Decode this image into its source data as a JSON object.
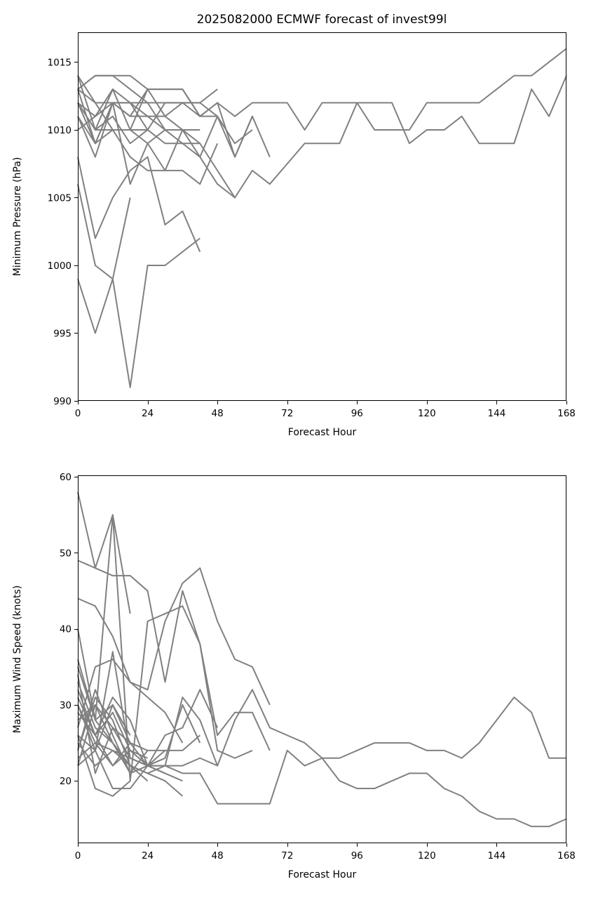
{
  "figure": {
    "title": "2025082000 ECMWF forecast of invest99l"
  },
  "chart_data": [
    {
      "type": "line",
      "title": "2025082000 ECMWF forecast of invest99l",
      "xlabel": "Forecast Hour",
      "ylabel": "Minimum Pressure (hPa)",
      "xlim": [
        0,
        168
      ],
      "ylim": [
        990,
        1017.2
      ],
      "xticks": [
        0,
        24,
        48,
        72,
        96,
        120,
        144,
        168
      ],
      "yticks": [
        990,
        995,
        1000,
        1005,
        1010,
        1015
      ],
      "line_color": "#808080",
      "grid": false,
      "series": [
        {
          "x": [
            0,
            6,
            12,
            18,
            24,
            30,
            36,
            42,
            48,
            54,
            60,
            66,
            72,
            78,
            84,
            90,
            96,
            102,
            108,
            114,
            120,
            126,
            132,
            138,
            144,
            150,
            156,
            162,
            168
          ],
          "y": [
            1013,
            1014,
            1014,
            1013,
            1012,
            1012,
            1012,
            1011,
            1012,
            1011,
            1012,
            1012,
            1012,
            1010,
            1012,
            1012,
            1012,
            1012,
            1012,
            1009,
            1010,
            1010,
            1011,
            1009,
            1009,
            1009,
            1013,
            1011,
            1014
          ]
        },
        {
          "x": [
            0,
            6,
            12,
            18,
            24,
            30,
            36,
            42,
            48,
            54,
            60,
            66,
            72,
            78,
            84,
            90,
            96,
            102,
            108,
            114,
            120,
            126,
            132,
            138,
            144,
            150,
            156,
            162,
            168
          ],
          "y": [
            1012,
            1011,
            1013,
            1012,
            1011,
            1010,
            1010,
            1008,
            1006,
            1005,
            1007,
            1006,
            1007.5,
            1009,
            1009,
            1009,
            1012,
            1010,
            1010,
            1010,
            1012,
            1012,
            1012,
            1012,
            1013,
            1014,
            1014,
            1015,
            1016
          ]
        },
        {
          "x": [
            0,
            6,
            12,
            18,
            24,
            30,
            36,
            42,
            48,
            54,
            60,
            66
          ],
          "y": [
            1013,
            1012,
            1010,
            1010,
            1013,
            1013,
            1013,
            1011,
            1012,
            1008,
            1011,
            1008
          ]
        },
        {
          "x": [
            0,
            6,
            12,
            18,
            24,
            30,
            36,
            42,
            48
          ],
          "y": [
            1014,
            1012,
            1012,
            1011,
            1013,
            1011,
            1012,
            1012,
            1013
          ]
        },
        {
          "x": [
            0,
            6,
            12,
            18,
            24,
            30,
            36,
            42,
            48
          ],
          "y": [
            1013,
            1014,
            1014,
            1014,
            1013,
            1013,
            1013,
            1011,
            1011
          ]
        },
        {
          "x": [
            0,
            6,
            12,
            18,
            24,
            30,
            36,
            42,
            48,
            54,
            60
          ],
          "y": [
            1012,
            1009,
            1010,
            1010,
            1010,
            1012,
            1012,
            1012,
            1011,
            1009,
            1010
          ]
        },
        {
          "x": [
            0,
            6,
            12,
            18,
            24,
            30,
            36,
            42,
            48,
            54,
            60
          ],
          "y": [
            1012,
            1010,
            1011,
            1009,
            1010,
            1009,
            1009,
            1008,
            1011,
            1008,
            1011
          ]
        },
        {
          "x": [
            0,
            6,
            12,
            18,
            24,
            30,
            36,
            42
          ],
          "y": [
            1013,
            1009,
            1012,
            1011,
            1011,
            1011,
            1010,
            1010
          ]
        },
        {
          "x": [
            0,
            6,
            12,
            18,
            24,
            30,
            36,
            42
          ],
          "y": [
            1011,
            1009,
            1012,
            1012,
            1012,
            1010,
            1010,
            1009
          ]
        },
        {
          "x": [
            0,
            6,
            12,
            18,
            24,
            30,
            36,
            42,
            48
          ],
          "y": [
            1014,
            1010,
            1013,
            1010,
            1009,
            1007,
            1007,
            1006,
            1009
          ]
        },
        {
          "x": [
            0,
            6,
            12,
            18,
            24,
            30,
            36,
            42,
            48,
            54
          ],
          "y": [
            1011,
            1008,
            1012,
            1006,
            1009,
            1010,
            1009,
            1009,
            1007,
            1005
          ]
        },
        {
          "x": [
            0,
            6,
            12,
            18,
            24,
            30,
            36
          ],
          "y": [
            1012,
            1010,
            1010,
            1008,
            1007,
            1007,
            1010
          ]
        },
        {
          "x": [
            0,
            6,
            12,
            18,
            24
          ],
          "y": [
            1010,
            1011,
            1012,
            1012,
            1010
          ]
        },
        {
          "x": [
            0,
            6,
            12,
            18,
            24,
            30,
            36,
            42
          ],
          "y": [
            1008,
            1002,
            1005,
            1007,
            1008,
            1003,
            1004,
            1001
          ]
        },
        {
          "x": [
            0,
            6,
            12,
            18,
            24,
            30,
            36,
            42
          ],
          "y": [
            1006,
            1000,
            999,
            991,
            1000,
            1000,
            1001,
            1002
          ]
        },
        {
          "x": [
            0,
            6,
            12,
            18
          ],
          "y": [
            999,
            995,
            999,
            1005
          ]
        }
      ]
    },
    {
      "type": "line",
      "title": "",
      "xlabel": "Forecast Hour",
      "ylabel": "Maximum Wind Speed (knots)",
      "xlim": [
        0,
        168
      ],
      "ylim": [
        11.8,
        60.2
      ],
      "xticks": [
        0,
        24,
        48,
        72,
        96,
        120,
        144,
        168
      ],
      "yticks": [
        20,
        30,
        40,
        50,
        60
      ],
      "line_color": "#808080",
      "grid": false,
      "series": [
        {
          "x": [
            0,
            6,
            12,
            18
          ],
          "y": [
            58,
            48,
            55,
            42
          ]
        },
        {
          "x": [
            0,
            6,
            12,
            18,
            24,
            30,
            36,
            42,
            48,
            54,
            60,
            66
          ],
          "y": [
            49,
            48,
            47,
            47,
            45,
            33,
            45,
            38,
            26,
            29,
            29,
            24
          ]
        },
        {
          "x": [
            0,
            6,
            12,
            18,
            24,
            30,
            36,
            42,
            48,
            54,
            60,
            66
          ],
          "y": [
            44,
            43,
            39,
            33,
            32,
            41,
            46,
            48,
            41,
            36,
            35,
            30
          ]
        },
        {
          "x": [
            0,
            6,
            12,
            18,
            24,
            30,
            36,
            42,
            48,
            54,
            60,
            66,
            72,
            78,
            84,
            90,
            96,
            102,
            108,
            114,
            120,
            126,
            132,
            138,
            144,
            150,
            156,
            162,
            168
          ],
          "y": [
            36,
            28,
            30,
            25,
            22,
            22,
            22,
            23,
            22,
            28,
            32,
            27,
            26,
            25,
            23,
            23,
            24,
            25,
            25,
            25,
            24,
            24,
            23,
            25,
            28,
            31,
            29,
            23,
            23
          ]
        },
        {
          "x": [
            0,
            6,
            12,
            18,
            24,
            30,
            36,
            42,
            48,
            54,
            60,
            66,
            72,
            78,
            84,
            90,
            96,
            102,
            108,
            114,
            120,
            126,
            132,
            138,
            144,
            150,
            156,
            162,
            168
          ],
          "y": [
            30,
            25,
            24,
            23,
            22,
            22,
            21,
            21,
            17,
            17,
            17,
            17,
            24,
            22,
            23,
            20,
            19,
            19,
            20,
            21,
            21,
            19,
            18,
            16,
            15,
            15,
            14,
            14,
            15
          ]
        },
        {
          "x": [
            0,
            6,
            12,
            18,
            24,
            30,
            36,
            42,
            48,
            54,
            60
          ],
          "y": [
            40,
            28,
            55,
            20,
            41,
            42,
            43,
            38,
            24,
            23,
            24
          ]
        },
        {
          "x": [
            0,
            6,
            12,
            18,
            24,
            30,
            36,
            42,
            48
          ],
          "y": [
            35,
            28,
            25,
            22,
            21,
            22,
            31,
            28,
            22
          ]
        },
        {
          "x": [
            0,
            6,
            12,
            18,
            24,
            30,
            36,
            42,
            48
          ],
          "y": [
            30,
            24,
            19,
            19,
            22,
            26,
            27,
            32,
            27
          ]
        },
        {
          "x": [
            0,
            6,
            12,
            18,
            24,
            30,
            36,
            42
          ],
          "y": [
            32,
            26,
            31,
            28,
            22,
            23,
            30,
            25
          ]
        },
        {
          "x": [
            0,
            6,
            12,
            18,
            24,
            30,
            36,
            42
          ],
          "y": [
            29,
            26,
            22,
            25,
            24,
            24,
            24,
            26
          ]
        },
        {
          "x": [
            0,
            6,
            12,
            18,
            24,
            30,
            36
          ],
          "y": [
            27,
            35,
            36,
            33,
            31,
            29,
            25
          ]
        },
        {
          "x": [
            0,
            6,
            12,
            18,
            24,
            30,
            36
          ],
          "y": [
            26,
            24,
            37,
            23,
            22,
            21,
            20
          ]
        },
        {
          "x": [
            0,
            6,
            12,
            18,
            24,
            30,
            36
          ],
          "y": [
            25,
            22,
            24,
            22,
            21,
            20,
            18
          ]
        },
        {
          "x": [
            0,
            6,
            12,
            18,
            24,
            30
          ],
          "y": [
            31,
            26,
            29,
            24,
            22,
            21
          ]
        },
        {
          "x": [
            0,
            6,
            12,
            18,
            24,
            30
          ],
          "y": [
            28,
            30,
            27,
            23,
            22,
            23
          ]
        },
        {
          "x": [
            0,
            6,
            12,
            18,
            24,
            30
          ],
          "y": [
            24,
            32,
            26,
            21,
            22,
            24
          ]
        },
        {
          "x": [
            0,
            6,
            12,
            18,
            24
          ],
          "y": [
            33,
            27,
            25,
            22,
            20
          ]
        },
        {
          "x": [
            0,
            6,
            12,
            18,
            24
          ],
          "y": [
            22,
            30,
            25,
            21,
            24
          ]
        },
        {
          "x": [
            0,
            6,
            12,
            18,
            24
          ],
          "y": [
            23,
            25,
            22,
            24,
            23
          ]
        },
        {
          "x": [
            0,
            6,
            12,
            18
          ],
          "y": [
            26,
            19,
            18,
            20
          ]
        },
        {
          "x": [
            0,
            6,
            12,
            18
          ],
          "y": [
            24,
            31,
            28,
            22
          ]
        },
        {
          "x": [
            0,
            6,
            12,
            18
          ],
          "y": [
            34,
            21,
            27,
            25
          ]
        },
        {
          "x": [
            0,
            6,
            12,
            18
          ],
          "y": [
            22,
            24,
            30,
            26
          ]
        }
      ]
    }
  ]
}
